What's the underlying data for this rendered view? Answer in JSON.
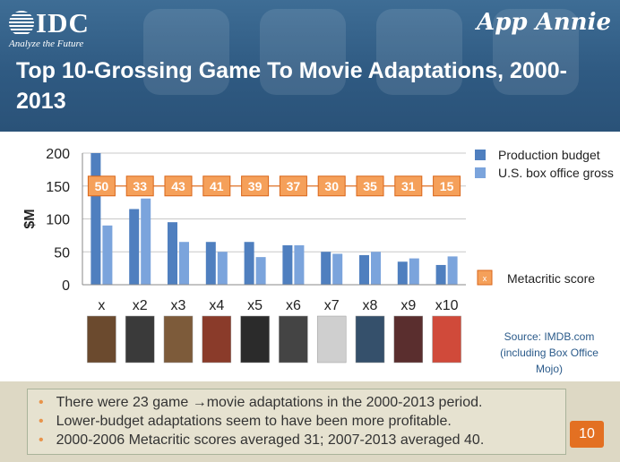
{
  "header": {
    "logo_left": "IDC",
    "logo_tagline": "Analyze the Future",
    "logo_right": "App Annie",
    "title": "Top 10-Grossing Game To Movie Adaptations, 2000-2013"
  },
  "chart_data": {
    "type": "bar",
    "ylabel": "$M",
    "ylim": [
      0,
      200
    ],
    "yticks": [
      0,
      50,
      100,
      150,
      200
    ],
    "categories": [
      "x",
      "x2",
      "x3",
      "x4",
      "x5",
      "x6",
      "x7",
      "x8",
      "x9",
      "x10"
    ],
    "series": [
      {
        "name": "Production budget",
        "values": [
          200,
          115,
          95,
          65,
          65,
          60,
          50,
          45,
          35,
          30
        ]
      },
      {
        "name": "U.S. box office gross",
        "values": [
          90,
          131,
          65,
          50,
          42,
          60,
          47,
          50,
          40,
          43
        ]
      }
    ],
    "metacritic": {
      "name": "Metacritic score",
      "marker": "x",
      "values": [
        50,
        33,
        43,
        41,
        39,
        37,
        30,
        35,
        31,
        15
      ]
    },
    "legend_position": "right",
    "colors": {
      "budget": "#4f7fbf",
      "gross": "#7ba4dc",
      "metacritic": "#f5a05a"
    }
  },
  "source": "Source: IMDB.com (including Box Office Mojo)",
  "bullets": [
    "There were 23 game →movie adaptations in the 2000-2013 period.",
    "Lower-budget adaptations seem to have been more profitable.",
    "2000-2006 Metacritic scores averaged 31; 2007-2013 averaged 40."
  ],
  "page_number": "10"
}
